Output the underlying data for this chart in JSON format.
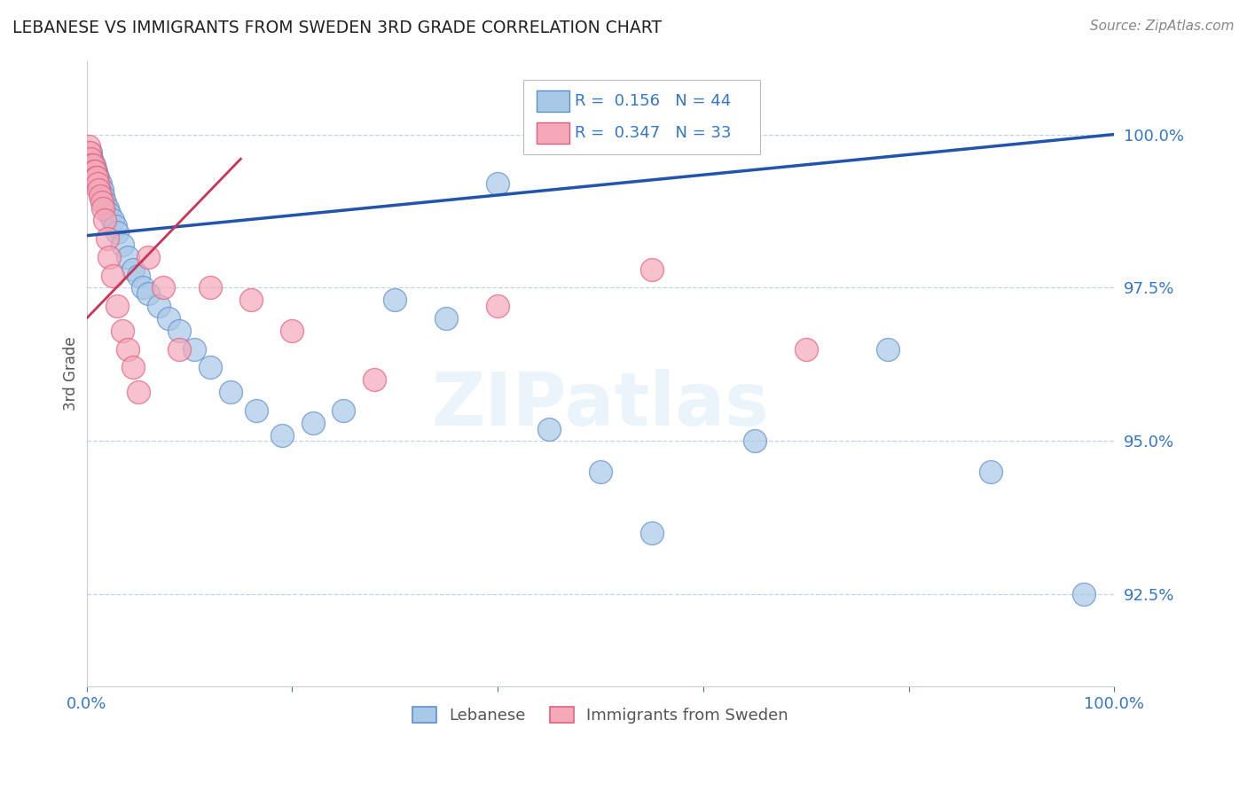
{
  "title": "LEBANESE VS IMMIGRANTS FROM SWEDEN 3RD GRADE CORRELATION CHART",
  "source": "Source: ZipAtlas.com",
  "ylabel": "3rd Grade",
  "xlim": [
    0.0,
    100.0
  ],
  "ylim": [
    91.0,
    101.2
  ],
  "yticks": [
    92.5,
    95.0,
    97.5,
    100.0
  ],
  "ytick_labels": [
    "92.5%",
    "95.0%",
    "97.5%",
    "100.0%"
  ],
  "blue_R": 0.156,
  "blue_N": 44,
  "pink_R": 0.347,
  "pink_N": 33,
  "blue_color": "#a8c8e8",
  "pink_color": "#f4a8b8",
  "blue_edge_color": "#6090c8",
  "pink_edge_color": "#e06080",
  "blue_line_color": "#2255aa",
  "pink_line_color": "#cc3355",
  "legend_label_blue": "Lebanese",
  "legend_label_pink": "Immigrants from Sweden",
  "watermark": "ZIPatlas",
  "blue_x": [
    0.4,
    0.5,
    0.6,
    0.7,
    0.8,
    0.9,
    1.0,
    1.1,
    1.2,
    1.3,
    1.5,
    1.6,
    1.8,
    2.0,
    2.2,
    2.5,
    2.8,
    3.0,
    3.5,
    4.0,
    4.5,
    5.0,
    5.5,
    6.0,
    7.0,
    8.0,
    9.0,
    10.5,
    12.0,
    14.0,
    16.5,
    19.0,
    22.0,
    25.0,
    30.0,
    35.0,
    40.0,
    45.0,
    50.0,
    55.0,
    65.0,
    78.0,
    88.0,
    97.0
  ],
  "blue_y": [
    99.7,
    99.6,
    99.5,
    99.5,
    99.4,
    99.4,
    99.3,
    99.3,
    99.2,
    99.2,
    99.1,
    99.0,
    98.9,
    98.8,
    98.7,
    98.6,
    98.5,
    98.4,
    98.2,
    98.0,
    97.8,
    97.7,
    97.5,
    97.4,
    97.2,
    97.0,
    96.8,
    96.5,
    96.2,
    95.8,
    95.5,
    95.1,
    95.3,
    95.5,
    97.3,
    97.0,
    99.2,
    95.2,
    94.5,
    93.5,
    95.0,
    96.5,
    94.5,
    92.5
  ],
  "pink_x": [
    0.2,
    0.3,
    0.4,
    0.5,
    0.6,
    0.7,
    0.8,
    0.9,
    1.0,
    1.1,
    1.2,
    1.3,
    1.5,
    1.6,
    1.8,
    2.0,
    2.2,
    2.5,
    3.0,
    3.5,
    4.0,
    4.5,
    5.0,
    6.0,
    7.5,
    9.0,
    12.0,
    16.0,
    20.0,
    28.0,
    40.0,
    55.0,
    70.0
  ],
  "pink_y": [
    99.8,
    99.7,
    99.6,
    99.5,
    99.5,
    99.4,
    99.4,
    99.3,
    99.3,
    99.2,
    99.1,
    99.0,
    98.9,
    98.8,
    98.6,
    98.3,
    98.0,
    97.7,
    97.2,
    96.8,
    96.5,
    96.2,
    95.8,
    98.0,
    97.5,
    96.5,
    97.5,
    97.3,
    96.8,
    96.0,
    97.2,
    97.8,
    96.5
  ],
  "blue_trend_x0": 0.0,
  "blue_trend_y0": 98.35,
  "blue_trend_x1": 100.0,
  "blue_trend_y1": 100.0,
  "pink_trend_x0": 0.0,
  "pink_trend_y0": 97.0,
  "pink_trend_x1": 15.0,
  "pink_trend_y1": 99.6
}
